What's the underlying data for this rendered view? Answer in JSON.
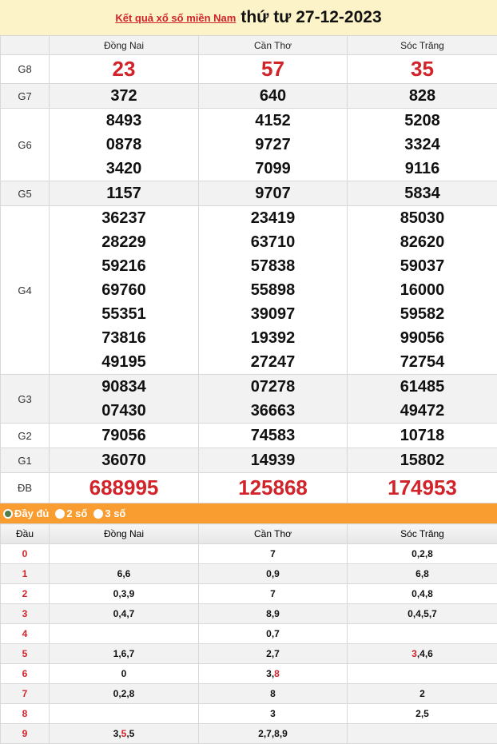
{
  "header": {
    "link": "Kết quả xổ số miền Nam",
    "date": "thứ tư 27-12-2023"
  },
  "provinces": [
    "Đồng Nai",
    "Cần Thơ",
    "Sóc Trăng"
  ],
  "prizes": [
    {
      "label": "G8",
      "values": [
        [
          "23"
        ],
        [
          "57"
        ],
        [
          "35"
        ]
      ]
    },
    {
      "label": "G7",
      "values": [
        [
          "372"
        ],
        [
          "640"
        ],
        [
          "828"
        ]
      ]
    },
    {
      "label": "G6",
      "values": [
        [
          "8493",
          "0878",
          "3420"
        ],
        [
          "4152",
          "9727",
          "7099"
        ],
        [
          "5208",
          "3324",
          "9116"
        ]
      ]
    },
    {
      "label": "G5",
      "values": [
        [
          "1157"
        ],
        [
          "9707"
        ],
        [
          "5834"
        ]
      ]
    },
    {
      "label": "G4",
      "values": [
        [
          "36237",
          "28229",
          "59216",
          "69760",
          "55351",
          "73816",
          "49195"
        ],
        [
          "23419",
          "63710",
          "57838",
          "55898",
          "39097",
          "19392",
          "27247"
        ],
        [
          "85030",
          "82620",
          "59037",
          "16000",
          "59582",
          "99056",
          "72754"
        ]
      ]
    },
    {
      "label": "G3",
      "values": [
        [
          "90834",
          "07430"
        ],
        [
          "07278",
          "36663"
        ],
        [
          "61485",
          "49472"
        ]
      ]
    },
    {
      "label": "G2",
      "values": [
        [
          "79056"
        ],
        [
          "74583"
        ],
        [
          "10718"
        ]
      ]
    },
    {
      "label": "G1",
      "values": [
        [
          "36070"
        ],
        [
          "14939"
        ],
        [
          "15802"
        ]
      ]
    },
    {
      "label": "ĐB",
      "values": [
        [
          "688995"
        ],
        [
          "125868"
        ],
        [
          "174953"
        ]
      ]
    }
  ],
  "filter": {
    "options": [
      "Đầy đủ",
      "2 số",
      "3 số"
    ],
    "selected": "Đầy đủ"
  },
  "loto": {
    "head_label": "Đầu",
    "accent": "#d0232a",
    "rows": [
      {
        "d": "0",
        "cells": [
          [],
          [
            {
              "t": "7"
            }
          ],
          [
            {
              "t": "0,2,8"
            }
          ]
        ]
      },
      {
        "d": "1",
        "cells": [
          [
            {
              "t": "6,6"
            }
          ],
          [
            {
              "t": "0,9"
            }
          ],
          [
            {
              "t": "6,8"
            }
          ]
        ]
      },
      {
        "d": "2",
        "cells": [
          [
            {
              "t": "0,3,9"
            }
          ],
          [
            {
              "t": "7"
            }
          ],
          [
            {
              "t": "0,4,8"
            }
          ]
        ]
      },
      {
        "d": "3",
        "cells": [
          [
            {
              "t": "0,4,7"
            }
          ],
          [
            {
              "t": "8,9"
            }
          ],
          [
            {
              "t": "0,4,5,7"
            }
          ]
        ]
      },
      {
        "d": "4",
        "cells": [
          [],
          [
            {
              "t": "0,7"
            }
          ],
          []
        ]
      },
      {
        "d": "5",
        "cells": [
          [
            {
              "t": "1,6,7"
            }
          ],
          [
            {
              "t": "2,7"
            }
          ],
          [
            {
              "t": "3",
              "red": true
            },
            {
              "t": ",4,6"
            }
          ]
        ]
      },
      {
        "d": "6",
        "cells": [
          [
            {
              "t": "0"
            }
          ],
          [
            {
              "t": "3,"
            },
            {
              "t": "8",
              "red": true
            }
          ],
          []
        ]
      },
      {
        "d": "7",
        "cells": [
          [
            {
              "t": "0,2,8"
            }
          ],
          [
            {
              "t": "8"
            }
          ],
          [
            {
              "t": "2"
            }
          ]
        ]
      },
      {
        "d": "8",
        "cells": [
          [],
          [
            {
              "t": "3"
            }
          ],
          [
            {
              "t": "2,5"
            }
          ]
        ]
      },
      {
        "d": "9",
        "cells": [
          [
            {
              "t": "3,"
            },
            {
              "t": "5",
              "red": true
            },
            {
              "t": ",5"
            }
          ],
          [
            {
              "t": "2,7,8,9"
            }
          ],
          []
        ]
      }
    ]
  }
}
